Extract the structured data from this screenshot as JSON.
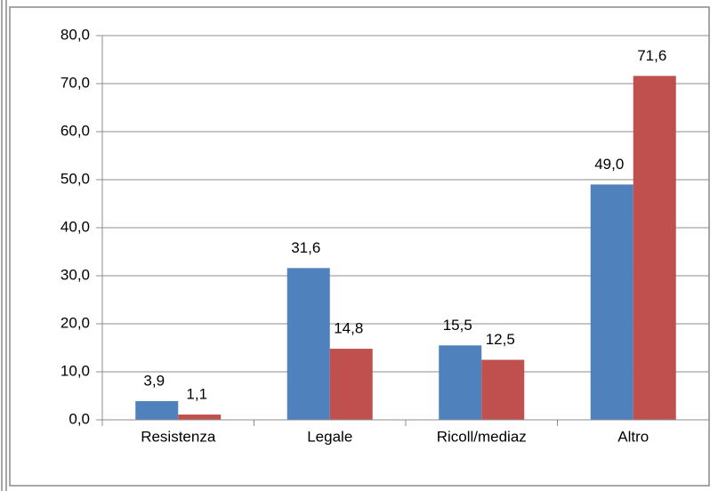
{
  "chart_data": {
    "type": "bar",
    "categories": [
      "Resistenza",
      "Legale",
      "Ricoll/mediaz",
      "Altro"
    ],
    "series": [
      {
        "color": "#4f81bd",
        "values": [
          3.9,
          31.6,
          15.5,
          49.0
        ],
        "value_labels": [
          "3,9",
          "31,6",
          "15,5",
          "49,0"
        ]
      },
      {
        "color": "#c0504d",
        "values": [
          1.1,
          14.8,
          12.5,
          71.6
        ],
        "value_labels": [
          "1,1",
          "14,8",
          "12,5",
          "71,6"
        ]
      }
    ],
    "ylim": [
      0,
      80
    ],
    "yticks": [
      {
        "value": 0,
        "label": "0,0"
      },
      {
        "value": 10,
        "label": "10,0"
      },
      {
        "value": 20,
        "label": "20,0"
      },
      {
        "value": 30,
        "label": "30,0"
      },
      {
        "value": 40,
        "label": "40,0"
      },
      {
        "value": 50,
        "label": "50,0"
      },
      {
        "value": 60,
        "label": "60,0"
      },
      {
        "value": 70,
        "label": "70,0"
      },
      {
        "value": 80,
        "label": "80,0"
      }
    ],
    "grid": true
  }
}
